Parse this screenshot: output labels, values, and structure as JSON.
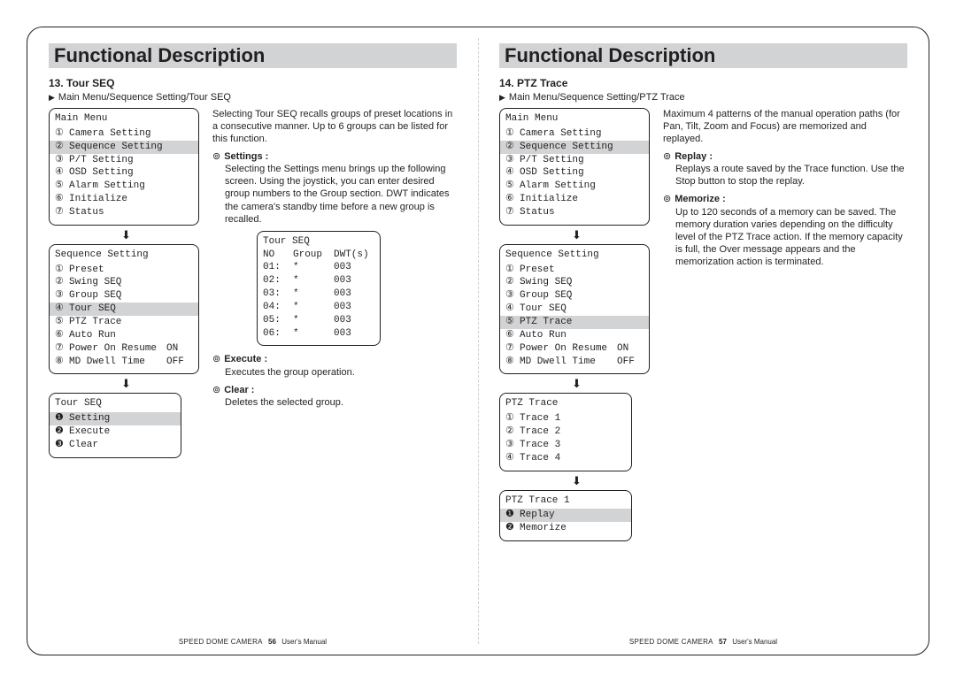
{
  "header": "Functional Description",
  "footer": {
    "product": "SPEED DOME CAMERA",
    "manual": "User's Manual"
  },
  "left": {
    "pageNum": "56",
    "section": {
      "num": "13.",
      "title": "Tour SEQ",
      "crumb": "Main Menu/Sequence Setting/Tour SEQ"
    },
    "intro": "Selecting Tour SEQ recalls groups of preset locations in a consecutive manner. Up to 6 groups can be listed for this function.",
    "settings": {
      "label": "Settings :",
      "body": "Selecting the Settings menu brings up the following screen. Using the joystick, you can enter desired group numbers to the Group section. DWT indicates the camera's standby time before a new group is recalled."
    },
    "mainMenu": {
      "title": "Main Menu",
      "items": [
        {
          "n": "①",
          "t": "Camera Setting"
        },
        {
          "n": "②",
          "t": "Sequence Setting",
          "hl": true
        },
        {
          "n": "③",
          "t": "P/T Setting"
        },
        {
          "n": "④",
          "t": "OSD Setting"
        },
        {
          "n": "⑤",
          "t": "Alarm Setting"
        },
        {
          "n": "⑥",
          "t": "Initialize"
        },
        {
          "n": "⑦",
          "t": "Status"
        }
      ]
    },
    "seqMenu": {
      "title": "Sequence Setting",
      "items": [
        {
          "n": "①",
          "t": "Preset"
        },
        {
          "n": "②",
          "t": "Swing SEQ"
        },
        {
          "n": "③",
          "t": "Group SEQ"
        },
        {
          "n": "④",
          "t": "Tour SEQ",
          "hl": true
        },
        {
          "n": "⑤",
          "t": "PTZ Trace"
        },
        {
          "n": "⑥",
          "t": "Auto Run"
        },
        {
          "n": "⑦",
          "t": "Power On Resume",
          "v": "ON"
        },
        {
          "n": "⑧",
          "t": "MD Dwell Time",
          "v": "OFF"
        }
      ]
    },
    "tourMenu": {
      "title": "Tour SEQ",
      "items": [
        {
          "n": "❶",
          "t": "Setting",
          "hl": true
        },
        {
          "n": "❷",
          "t": "Execute"
        },
        {
          "n": "❸",
          "t": "Clear"
        }
      ]
    },
    "tourTable": {
      "title": "Tour SEQ",
      "cols": [
        "NO",
        "Group",
        "DWT(s)"
      ],
      "rows": [
        [
          "01:",
          "*",
          "003"
        ],
        [
          "02:",
          "*",
          "003"
        ],
        [
          "03:",
          "*",
          "003"
        ],
        [
          "04:",
          "*",
          "003"
        ],
        [
          "05:",
          "*",
          "003"
        ],
        [
          "06:",
          "*",
          "003"
        ]
      ]
    },
    "execute": {
      "label": "Execute :",
      "body": "Executes the group operation."
    },
    "clear": {
      "label": "Clear :",
      "body": "Deletes the selected group."
    }
  },
  "right": {
    "pageNum": "57",
    "section": {
      "num": "14.",
      "title": "PTZ Trace",
      "crumb": "Main Menu/Sequence Setting/PTZ Trace"
    },
    "intro": "Maximum 4 patterns of the manual operation paths (for Pan, Tilt, Zoom and Focus) are memorized and replayed.",
    "replay": {
      "label": "Replay :",
      "body": "Replays a route saved by the Trace function. Use the Stop button to stop the replay."
    },
    "memorize": {
      "label": "Memorize :",
      "body": "Up to 120 seconds of a memory can be saved. The memory duration varies depending on the difficulty level of the PTZ Trace action. If the memory capacity is full, the Over message appears and the memorization action is terminated."
    },
    "mainMenu": {
      "title": "Main Menu",
      "items": [
        {
          "n": "①",
          "t": "Camera Setting"
        },
        {
          "n": "②",
          "t": "Sequence Setting",
          "hl": true
        },
        {
          "n": "③",
          "t": "P/T Setting"
        },
        {
          "n": "④",
          "t": "OSD Setting"
        },
        {
          "n": "⑤",
          "t": "Alarm Setting"
        },
        {
          "n": "⑥",
          "t": "Initialize"
        },
        {
          "n": "⑦",
          "t": "Status"
        }
      ]
    },
    "seqMenu": {
      "title": "Sequence Setting",
      "items": [
        {
          "n": "①",
          "t": "Preset"
        },
        {
          "n": "②",
          "t": "Swing SEQ"
        },
        {
          "n": "③",
          "t": "Group SEQ"
        },
        {
          "n": "④",
          "t": "Tour SEQ"
        },
        {
          "n": "⑤",
          "t": "PTZ Trace",
          "hl": true
        },
        {
          "n": "⑥",
          "t": "Auto Run"
        },
        {
          "n": "⑦",
          "t": "Power On Resume",
          "v": "ON"
        },
        {
          "n": "⑧",
          "t": "MD Dwell Time",
          "v": "OFF"
        }
      ]
    },
    "traceMenu": {
      "title": "PTZ Trace",
      "items": [
        {
          "n": "①",
          "t": "Trace 1"
        },
        {
          "n": "②",
          "t": "Trace 2"
        },
        {
          "n": "③",
          "t": "Trace 3"
        },
        {
          "n": "④",
          "t": "Trace 4"
        }
      ]
    },
    "trace1Menu": {
      "title": "PTZ Trace 1",
      "items": [
        {
          "n": "❶",
          "t": "Replay",
          "hl": true
        },
        {
          "n": "❷",
          "t": "Memorize"
        }
      ]
    }
  }
}
